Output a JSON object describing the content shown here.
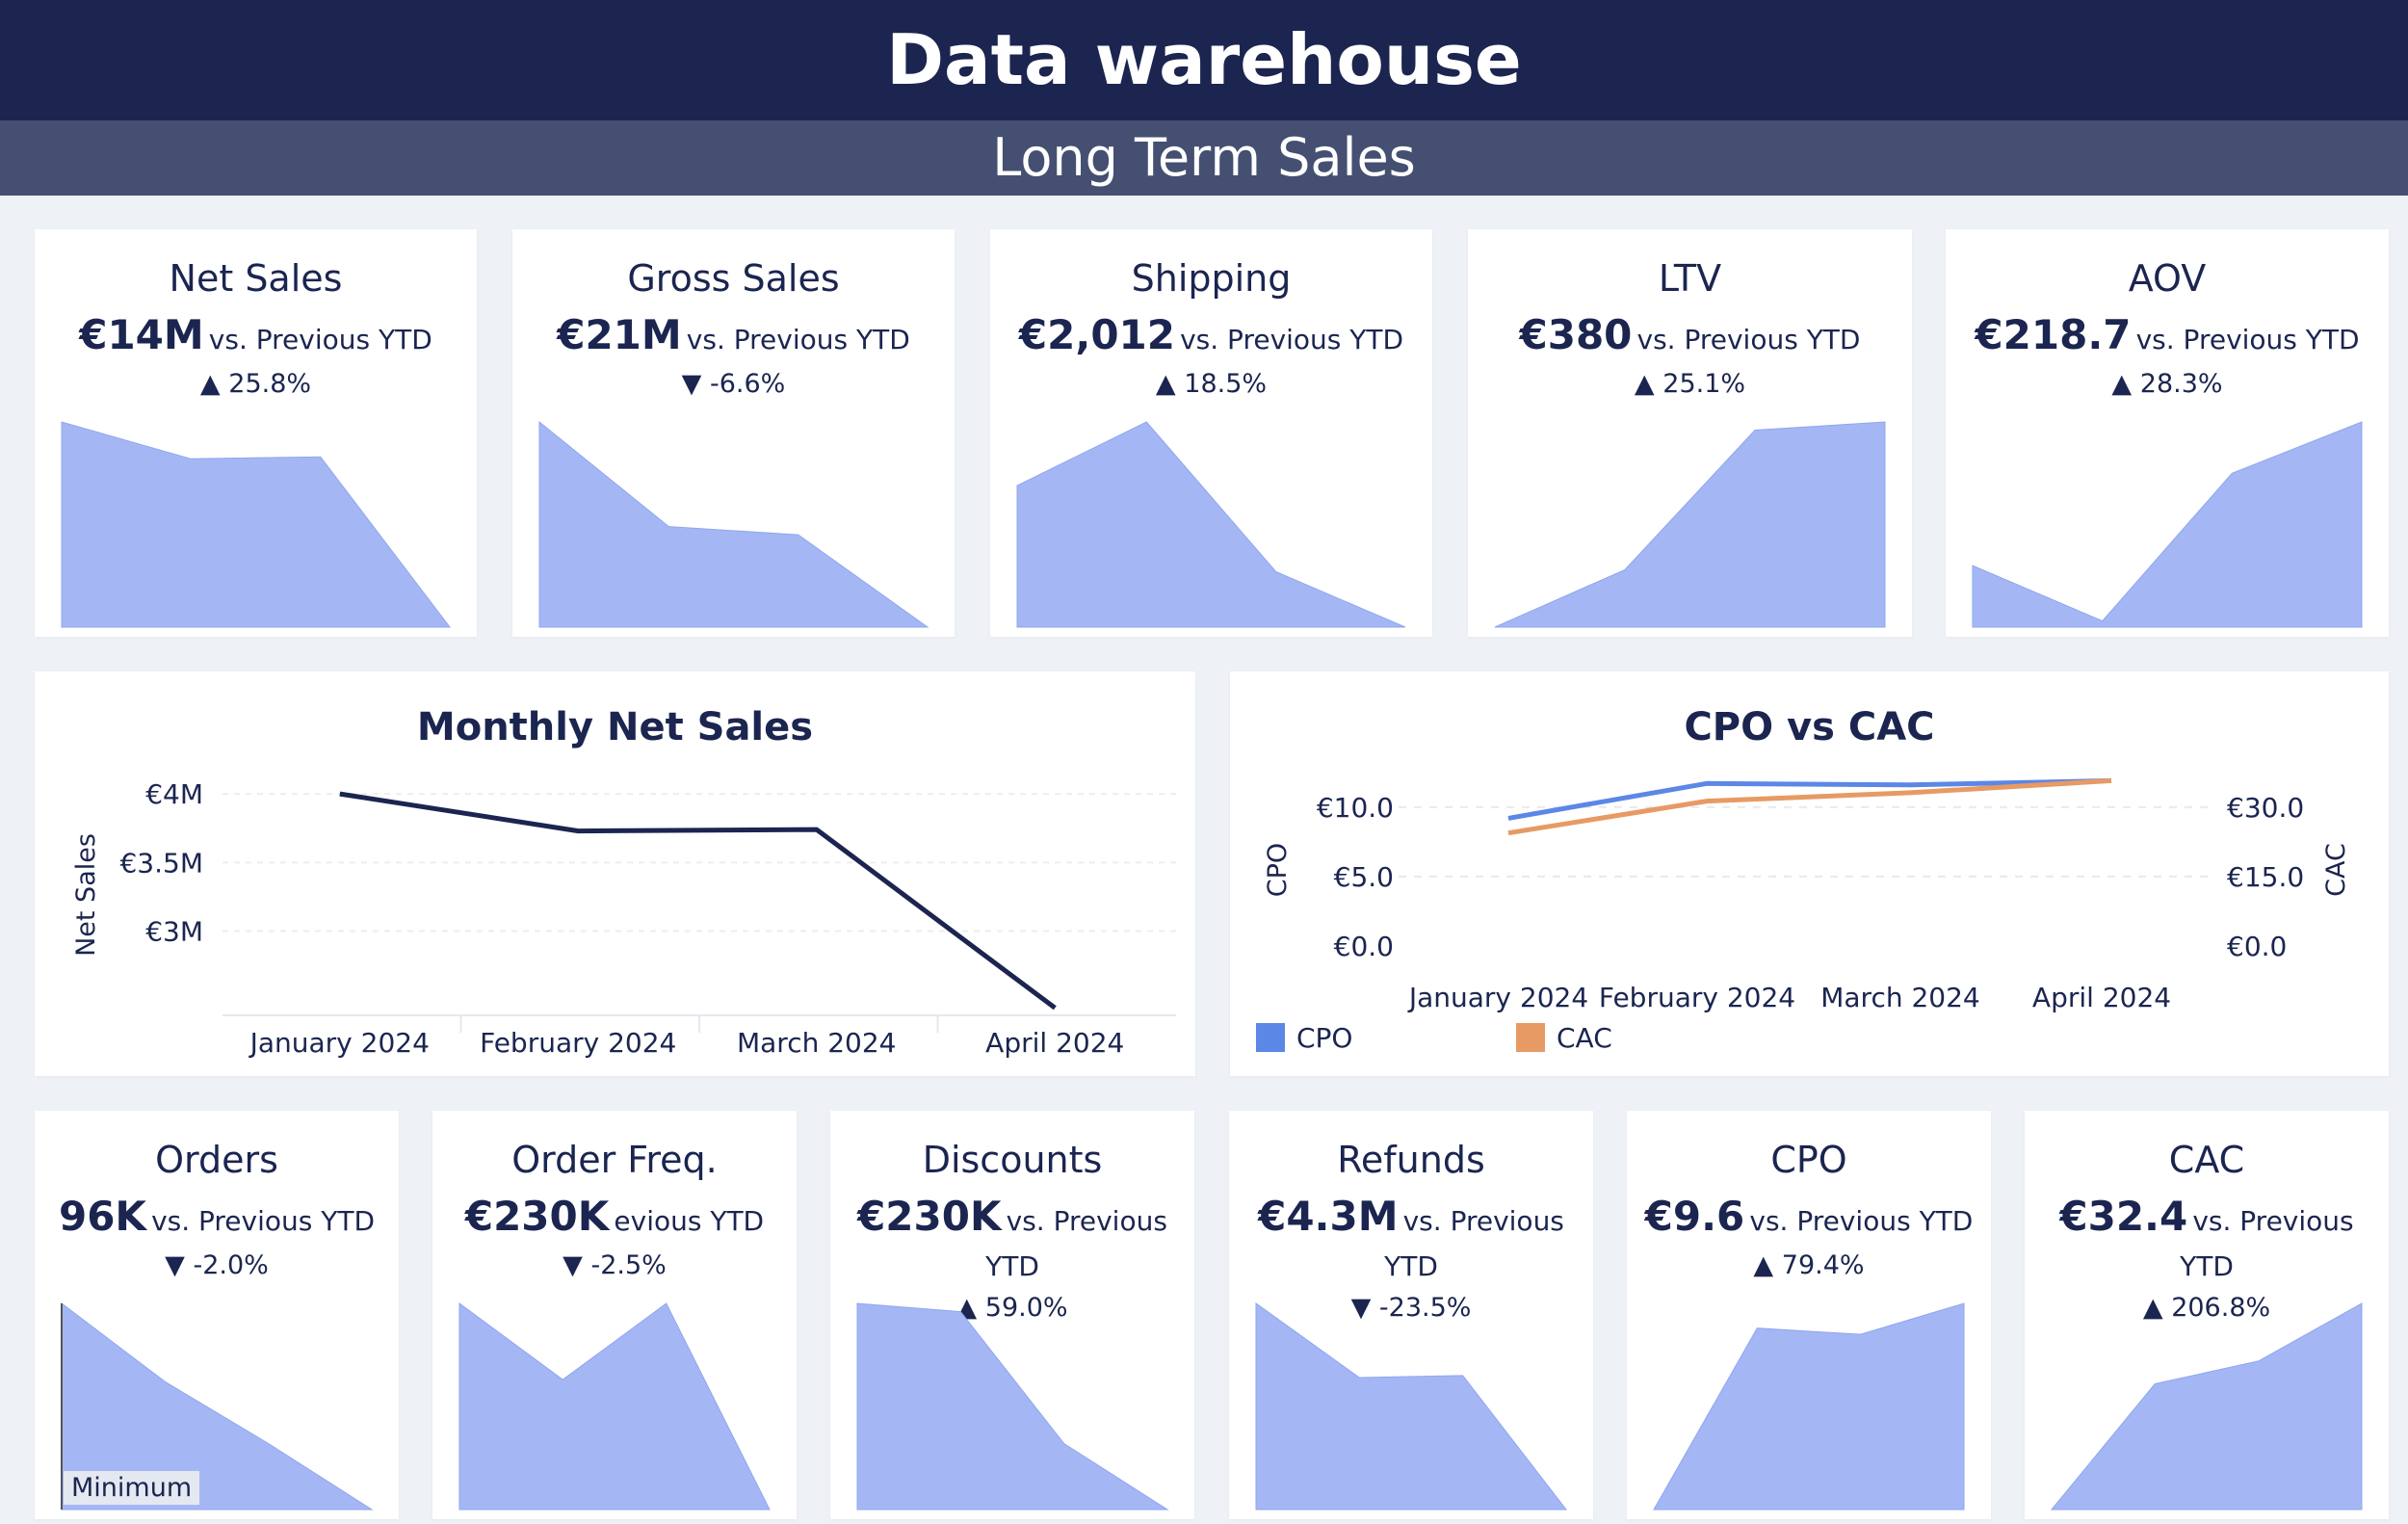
{
  "header": {
    "title": "Data warehouse",
    "subtitle": "Long Term Sales"
  },
  "colors": {
    "area": "#a4b7f4",
    "areaStroke": "#8fa6ef",
    "line": "#1b2550",
    "cpo": "#5b87e6",
    "cac": "#e79a64"
  },
  "kpis_top": [
    {
      "title": "Net Sales",
      "value": "€14M",
      "vs": "vs. Previous YTD",
      "arrow": "▲",
      "delta": "25.8%",
      "trend": [
        100,
        82,
        83,
        0
      ]
    },
    {
      "title": "Gross Sales",
      "value": "€21M",
      "vs": "vs. Previous YTD",
      "arrow": "▼",
      "delta": "-6.6%",
      "trend": [
        100,
        49,
        45,
        0
      ]
    },
    {
      "title": "Shipping",
      "value": "€2,012",
      "vs": "vs. Previous YTD",
      "arrow": "▲",
      "delta": "18.5%",
      "trend": [
        69,
        100,
        27,
        0
      ]
    },
    {
      "title": "LTV",
      "value": "€380",
      "vs": "vs. Previous YTD",
      "arrow": "▲",
      "delta": "25.1%",
      "trend": [
        0,
        28,
        96,
        100
      ]
    },
    {
      "title": "AOV",
      "value": "€218.7",
      "vs": "vs. Previous YTD",
      "arrow": "▲",
      "delta": "28.3%",
      "trend": [
        30,
        3,
        75,
        100
      ]
    }
  ],
  "kpis_bottom": [
    {
      "title": "Orders",
      "value": "96K",
      "vs": "vs. Previous YTD",
      "arrow": "▼",
      "delta": "-2.0%",
      "trend": [
        100,
        62,
        32,
        0
      ],
      "badge": "Minimum"
    },
    {
      "title": "Order Freq.",
      "value": "€230K",
      "vs": "evious YTD",
      "arrow": "▼",
      "delta": "-2.5%",
      "trend": [
        100,
        63,
        100,
        0
      ]
    },
    {
      "title": "Discounts",
      "value": "€230K",
      "vs": "vs. Previous",
      "vs2": "YTD",
      "arrow": "▲",
      "delta": "59.0%",
      "trend": [
        100,
        96,
        32,
        0
      ]
    },
    {
      "title": "Refunds",
      "value": "€4.3M",
      "vs": "vs. Previous",
      "vs2": "YTD",
      "arrow": "▼",
      "delta": "-23.5%",
      "trend": [
        100,
        64,
        65,
        0
      ]
    },
    {
      "title": "CPO",
      "value": "€9.6",
      "vs": "vs. Previous YTD",
      "arrow": "▲",
      "delta": "79.4%",
      "trend": [
        0,
        88,
        85,
        100
      ]
    },
    {
      "title": "CAC",
      "value": "€32.4",
      "vs": "vs. Previous",
      "vs2": "YTD",
      "arrow": "▲",
      "delta": "206.8%",
      "trend": [
        0,
        61,
        72,
        100
      ]
    }
  ],
  "chart_data": [
    {
      "type": "line",
      "title": "Monthly Net Sales",
      "ylabel": "Net Sales",
      "categories": [
        "January 2024",
        "February 2024",
        "March 2024",
        "April 2024"
      ],
      "values": [
        4.0,
        3.73,
        3.74,
        2.44
      ],
      "ylim": [
        2.4,
        4.12
      ],
      "yticks": [
        3,
        3.5,
        4
      ],
      "ytick_labels": [
        "€3M",
        "€3.5M",
        "€4M"
      ]
    },
    {
      "type": "line",
      "title": "CPO vs CAC",
      "categories": [
        "January 2024",
        "February 2024",
        "March 2024",
        "April 2024"
      ],
      "series": [
        {
          "name": "CPO",
          "axis": "left",
          "values": [
            9.2,
            11.7,
            11.6,
            11.9
          ]
        },
        {
          "name": "CAC",
          "axis": "right",
          "values": [
            24.4,
            31.3,
            33.1,
            35.7
          ]
        }
      ],
      "left_axis": {
        "label": "CPO",
        "ylim": [
          0,
          12
        ],
        "ticks": [
          0,
          5,
          10
        ],
        "tick_labels": [
          "€0.0",
          "€5.0",
          "€10.0"
        ]
      },
      "right_axis": {
        "label": "CAC",
        "ylim": [
          0,
          36
        ],
        "ticks": [
          0,
          15,
          30
        ],
        "tick_labels": [
          "€0.0",
          "€15.0",
          "€30.0"
        ]
      },
      "legend": [
        "CPO",
        "CAC"
      ]
    }
  ]
}
